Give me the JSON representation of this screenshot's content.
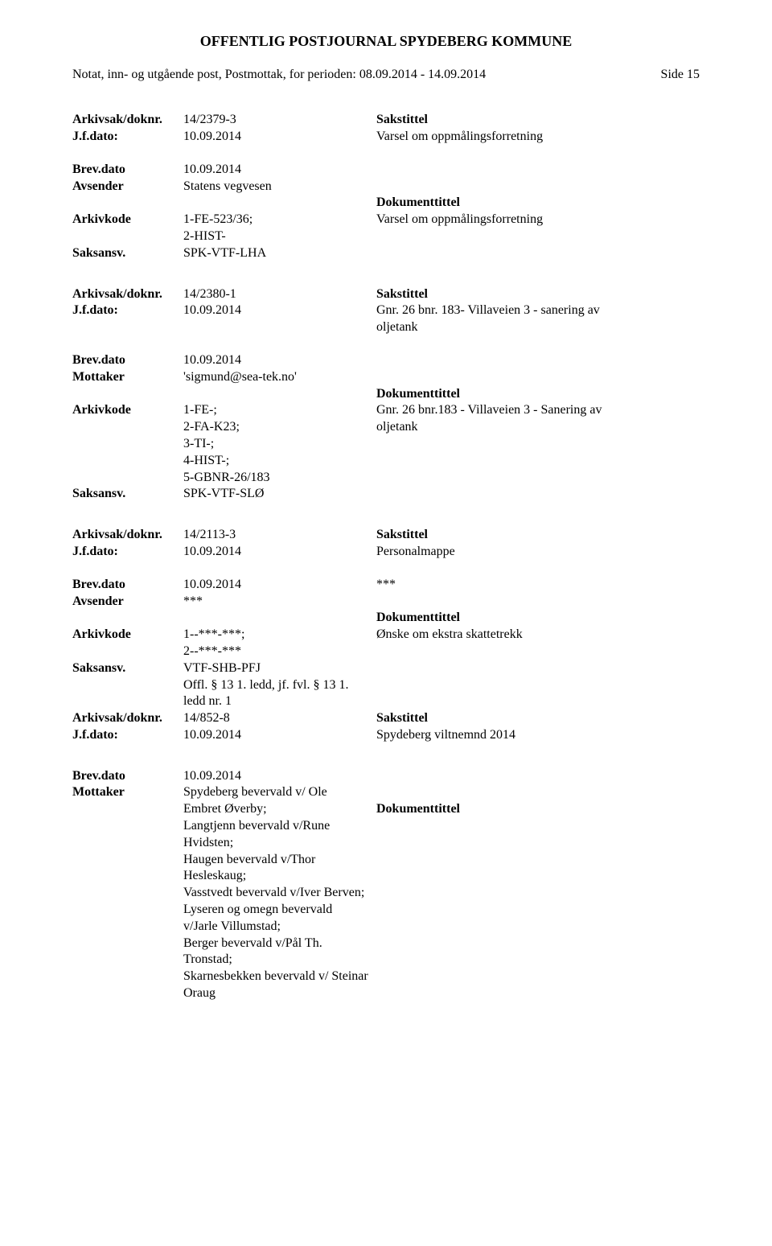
{
  "header": {
    "title": "OFFENTLIG POSTJOURNAL SPYDEBERG KOMMUNE",
    "subtitle": "Notat, inn- og utgående post, Postmottak, for perioden: 08.09.2014 - 14.09.2014",
    "page": "Side 15"
  },
  "labels": {
    "arkivsak": "Arkivsak/doknr.",
    "jfdato": "J.f.dato:",
    "brevdato": "Brev.dato",
    "avsender": "Avsender",
    "mottaker": "Mottaker",
    "arkivkode": "Arkivkode",
    "saksansv": "Saksansv.",
    "sakstittel": "Sakstittel",
    "dokumenttittel": "Dokumenttittel"
  },
  "records": [
    {
      "arkivsak": "14/2379-3",
      "jfdato": "10.09.2014",
      "saktittel": "Varsel om oppmålingsforretning",
      "brevdato": "10.09.2014",
      "party_label": "Avsender",
      "party_value": "Statens vegvesen",
      "arkivkode_lines": [
        "1-FE-523/36;",
        "2-HIST-"
      ],
      "doktittel": "Varsel om oppmålingsforretning",
      "saksansv": "SPK-VTF-LHA",
      "extra_lines": []
    },
    {
      "arkivsak": "14/2380-1",
      "jfdato": "10.09.2014",
      "saktittel_lines": [
        "Gnr. 26 bnr. 183- Villaveien 3 - sanering av",
        "oljetank"
      ],
      "brevdato": "10.09.2014",
      "party_label": "Mottaker",
      "party_value": "'sigmund@sea-tek.no'",
      "arkivkode_lines": [
        "1-FE-;",
        "2-FA-K23;",
        "3-TI-;",
        "4-HIST-;",
        "5-GBNR-26/183"
      ],
      "doktittel_lines": [
        "Gnr. 26 bnr.183 - Villaveien 3 - Sanering av",
        "oljetank"
      ],
      "saksansv": "SPK-VTF-SLØ",
      "extra_lines": []
    },
    {
      "arkivsak": "14/2113-3",
      "jfdato": "10.09.2014",
      "saktittel": "Personalmappe",
      "brevdato": "10.09.2014",
      "brevdato_note": "***",
      "party_label": "Avsender",
      "party_value": "***",
      "arkivkode_lines": [
        "1--***-***;",
        "2--***-***"
      ],
      "doktittel": "Ønske om ekstra skattetrekk",
      "saksansv": "VTF-SHB-PFJ",
      "extra_lines": [
        "Offl. § 13 1. ledd, jf. fvl. § 13 1.",
        "ledd nr. 1"
      ],
      "nested": {
        "arkivsak": "14/852-8",
        "jfdato": "10.09.2014",
        "saktittel": "Spydeberg viltnemnd 2014"
      }
    }
  ],
  "record4": {
    "brevdato": "10.09.2014",
    "party_label": "Mottaker",
    "party_lines": [
      "Spydeberg bevervald v/ Ole",
      "Embret Øverby;",
      "Langtjenn bevervald v/Rune",
      "Hvidsten;",
      "Haugen bevervald v/Thor",
      "Hesleskaug;",
      "Vasstvedt bevervald v/Iver Berven;",
      "Lyseren og omegn bevervald",
      "v/Jarle Villumstad;",
      "Berger bevervald v/Pål Th.",
      "Tronstad;",
      "Skarnesbekken bevervald v/ Steinar",
      "Oraug"
    ]
  }
}
